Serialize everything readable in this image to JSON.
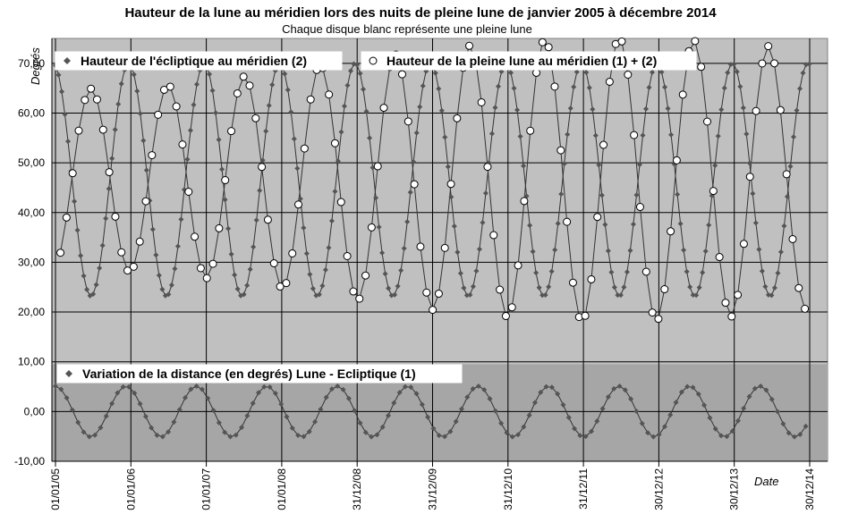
{
  "chart_data": {
    "type": "line",
    "title": "Hauteur de la lune au méridien lors des nuits de pleine lune de janvier 2005 à décembre 2014",
    "subtitle": "Chaque disque blanc représente une pleine lune",
    "ylabel": "Degrés",
    "xlabel": "Date",
    "ylim": [
      -10,
      75
    ],
    "yticks": [
      "-10,00",
      "0,00",
      "10,00",
      "20,00",
      "30,00",
      "40,00",
      "50,00",
      "60,00",
      "70,00"
    ],
    "ytick_values": [
      -10,
      0,
      10,
      20,
      30,
      40,
      50,
      60,
      70
    ],
    "xticks": [
      "01/01/05",
      "01/01/06",
      "01/01/07",
      "01/01/08",
      "31/12/08",
      "31/12/09",
      "31/12/10",
      "31/12/11",
      "30/12/12",
      "30/12/13",
      "30/12/14"
    ],
    "xlim": [
      "2005-01-01",
      "2014-12-30"
    ],
    "grid": true,
    "series": [
      {
        "name": "Hauteur de l'écliptique au méridien (2)",
        "marker": "diamond",
        "color": "#555555",
        "period_months": 12,
        "peak_month": "decembre",
        "amplitude_deg": 23.4,
        "mean_deg": 46.6,
        "min_value": 23.2,
        "max_value": 70.0
      },
      {
        "name": "Hauteur de la pleine lune au méridien (1) + (2)",
        "marker": "open-circle",
        "color": "#ffffff",
        "frequency": "lunaison",
        "min_value": 18.6,
        "max_value": 74.6
      },
      {
        "name": "Variation de la distance (en degrés) Lune - Ecliptique (1)",
        "marker": "diamond",
        "color": "#555555",
        "amplitude_deg": 5.1,
        "period_months": 11.2,
        "min_value": -5.2,
        "max_value": 5.2
      }
    ],
    "legend": [
      {
        "label": "Hauteur de l'écliptique au méridien (2)",
        "position": "top-left"
      },
      {
        "label": "Hauteur de la pleine lune au méridien (1) + (2)",
        "position": "top-center"
      },
      {
        "label": "Variation de la distance (en degrés) Lune - Ecliptique (1)",
        "position": "bottom-left"
      }
    ],
    "colors": {
      "plot_background": "#c0c0c0",
      "lower_band": "#a6a6a6",
      "grid": "#000000",
      "line": "#333333",
      "marker": "#555555",
      "open_marker_fill": "#ffffff"
    }
  }
}
